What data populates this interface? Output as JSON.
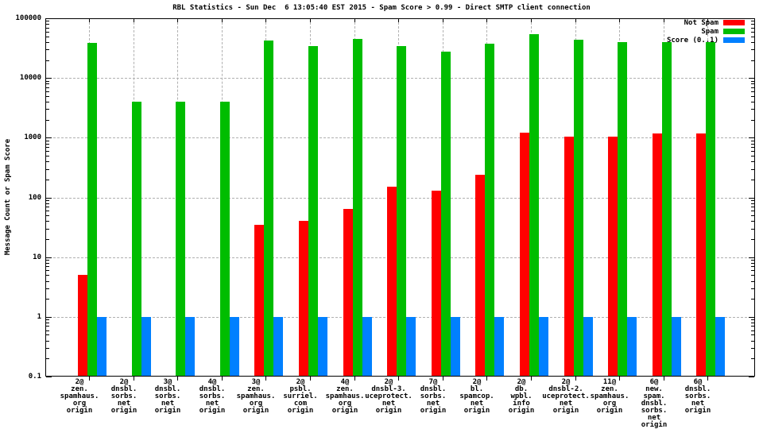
{
  "chart_data": {
    "type": "bar",
    "title": "RBL Statistics - Sun Dec  6 13:05:40 EST 2015 - Spam Score > 0.99 - Direct SMTP client connection",
    "ylabel": "Message Count or Spam Score",
    "xlabel": "",
    "y_scale": "log",
    "ylim": [
      0.1,
      100000
    ],
    "ytick_labels": [
      "100000",
      "10000",
      "1000",
      "100",
      "10",
      "1",
      "0.1"
    ],
    "grid": true,
    "legend_position": "top-right-inside",
    "background_color": "#ffffff",
    "grid_color": "#b0b0b0",
    "categories": [
      [
        "2@",
        "zen.",
        "spamhaus.",
        "org",
        "origin"
      ],
      [
        "2@",
        "dnsbl.",
        "sorbs.",
        "net",
        "origin"
      ],
      [
        "3@",
        "dnsbl.",
        "sorbs.",
        "net",
        "origin"
      ],
      [
        "4@",
        "dnsbl.",
        "sorbs.",
        "net",
        "origin"
      ],
      [
        "3@",
        "zen.",
        "spamhaus.",
        "org",
        "origin"
      ],
      [
        "2@",
        "psbl.",
        "surriel.",
        "com",
        "origin"
      ],
      [
        "4@",
        "zen.",
        "spamhaus.",
        "org",
        "origin"
      ],
      [
        "2@",
        "dnsbl-3.",
        "uceprotect.",
        "net",
        "origin"
      ],
      [
        "7@",
        "dnsbl.",
        "sorbs.",
        "net",
        "origin"
      ],
      [
        "2@",
        "bl.",
        "spamcop.",
        "net",
        "origin"
      ],
      [
        "2@",
        "db.",
        "wpbl.",
        "info",
        "origin"
      ],
      [
        "2@",
        "dnsbl-2.",
        "uceprotect.",
        "net",
        "origin"
      ],
      [
        "11@",
        "zen.",
        "spamhaus.",
        "org",
        "origin"
      ],
      [
        "6@",
        "new.",
        "spam.",
        "dnsbl.",
        "sorbs.",
        "net",
        "origin"
      ],
      [
        "6@",
        "dnsbl.",
        "sorbs.",
        "net",
        "origin"
      ]
    ],
    "series": [
      {
        "name": "Not Spam",
        "color": "#ff0000",
        "values": [
          5,
          0,
          0,
          0,
          35,
          40,
          65,
          150,
          130,
          240,
          1200,
          1050,
          1040,
          1180,
          1180
        ]
      },
      {
        "name": "Spam",
        "color": "#00bd00",
        "values": [
          39000,
          4000,
          4000,
          4000,
          42000,
          34000,
          45000,
          34000,
          28000,
          37000,
          55000,
          44000,
          40000,
          40000,
          40000
        ]
      },
      {
        "name": "Score (0..1)",
        "color": "#0080ff",
        "values": [
          1,
          1,
          1,
          1,
          1,
          1,
          1,
          1,
          1,
          1,
          1,
          1,
          1,
          1,
          1
        ]
      }
    ]
  }
}
